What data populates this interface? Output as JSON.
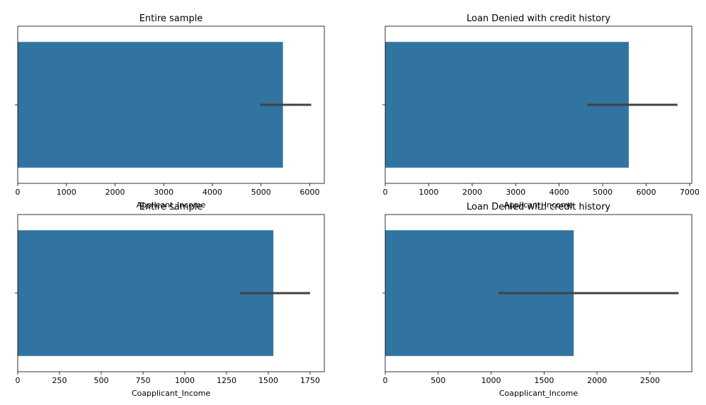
{
  "chart_data": [
    {
      "type": "bar",
      "orientation": "horizontal",
      "title": "Entire sample",
      "xlabel": "Applicant_Income",
      "categories": [
        ""
      ],
      "values": [
        5450
      ],
      "error_interval": [
        4980,
        6030
      ],
      "xlim": [
        0,
        6300
      ],
      "xticks": [
        0,
        1000,
        2000,
        3000,
        4000,
        5000,
        6000
      ],
      "xtick_labels": [
        "0",
        "1000",
        "2000",
        "3000",
        "4000",
        "5000",
        "6000"
      ],
      "bar_color": "#3274a1",
      "error_color": "#424242",
      "grid": false
    },
    {
      "type": "bar",
      "orientation": "horizontal",
      "title": "Loan Denied with credit history",
      "xlabel": "Applicant_Income",
      "categories": [
        ""
      ],
      "values": [
        5600
      ],
      "error_interval": [
        4650,
        6720
      ],
      "xlim": [
        0,
        7050
      ],
      "xticks": [
        0,
        1000,
        2000,
        3000,
        4000,
        5000,
        6000,
        7000
      ],
      "xtick_labels": [
        "0",
        "1000",
        "2000",
        "3000",
        "4000",
        "5000",
        "6000",
        "7000"
      ],
      "bar_color": "#3274a1",
      "error_color": "#424242",
      "grid": false
    },
    {
      "type": "bar",
      "orientation": "horizontal",
      "title": "Entire sample",
      "xlabel": "Coapplicant_Income",
      "categories": [
        ""
      ],
      "values": [
        1530
      ],
      "error_interval": [
        1330,
        1750
      ],
      "xlim": [
        0,
        1835
      ],
      "xticks": [
        0,
        250,
        500,
        750,
        1000,
        1250,
        1500,
        1750
      ],
      "xtick_labels": [
        "0",
        "250",
        "500",
        "750",
        "1000",
        "1250",
        "1500",
        "1750"
      ],
      "bar_color": "#3274a1",
      "error_color": "#424242",
      "grid": false
    },
    {
      "type": "bar",
      "orientation": "horizontal",
      "title": "Loan Denied with credit history",
      "xlabel": "Coapplicant_Income",
      "categories": [
        ""
      ],
      "values": [
        1780
      ],
      "error_interval": [
        1070,
        2770
      ],
      "xlim": [
        0,
        2895
      ],
      "xticks": [
        0,
        500,
        1000,
        1500,
        2000,
        2500
      ],
      "xtick_labels": [
        "0",
        "500",
        "1000",
        "1500",
        "2000",
        "2500"
      ],
      "bar_color": "#3274a1",
      "error_color": "#424242",
      "grid": false
    }
  ]
}
